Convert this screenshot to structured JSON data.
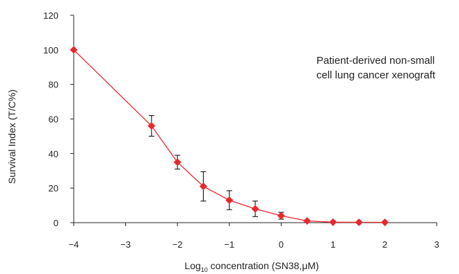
{
  "chart_data": {
    "type": "line",
    "xlabel_prefix": "Log",
    "xlabel_sub": "10",
    "xlabel_suffix": " concentration  (SN38,μM)",
    "ylabel": "Survival Index (T/C%)",
    "annotation_line1": "Patient-derived non-small",
    "annotation_line2": "cell lung cancer xenograft",
    "xlim": [
      -4,
      3
    ],
    "ylim": [
      0,
      120
    ],
    "x_ticks": [
      -4,
      -3,
      -2,
      -1,
      0,
      1,
      2,
      3
    ],
    "x_tick_labels": [
      "−4",
      "−3",
      "−2",
      "−1",
      "0",
      "1",
      "2",
      "3"
    ],
    "y_ticks": [
      0,
      20,
      40,
      60,
      80,
      100,
      120
    ],
    "y_tick_labels": [
      "0",
      "20",
      "40",
      "60",
      "80",
      "100",
      "120"
    ],
    "grid": false,
    "color": "#e8282d",
    "axis_color": "#222222",
    "series": [
      {
        "marker": "diamond",
        "x": [
          -4,
          -2.5,
          -2,
          -1.5,
          -1,
          -0.5,
          0,
          0.5,
          1,
          1.5,
          2
        ],
        "y": [
          100,
          56,
          35,
          21,
          13,
          8,
          4,
          1,
          0.3,
          0.2,
          0.2
        ],
        "err": [
          0,
          6,
          4,
          8.5,
          5.5,
          4.5,
          2,
          0,
          0,
          0,
          0
        ]
      }
    ]
  }
}
